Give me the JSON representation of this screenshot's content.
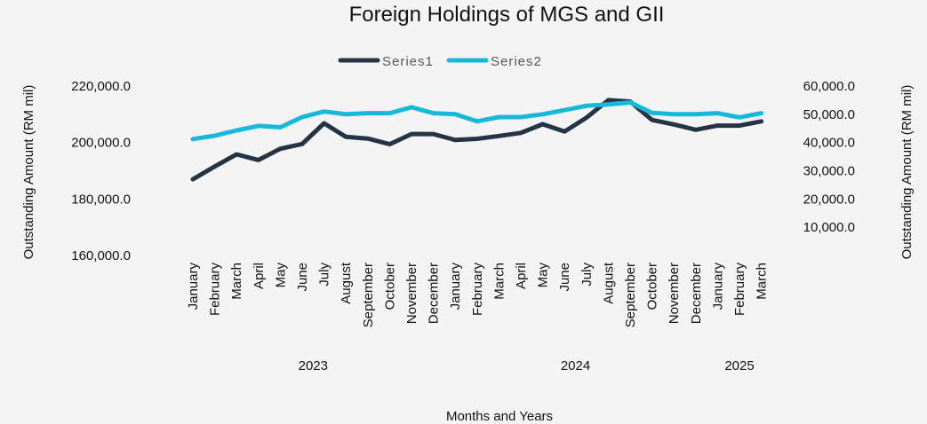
{
  "chart_data": {
    "type": "line",
    "title": "Foreign Holdings of MGS and GII",
    "xlabel": "Months and Years",
    "ylabel_left": "Outstanding Amount (RM mil)",
    "ylabel_right": "Outstanding Amount (RM mil)",
    "legend": [
      "Series1",
      "Series2"
    ],
    "legend_position": "top-center",
    "categories": [
      "January",
      "February",
      "March",
      "April",
      "May",
      "June",
      "July",
      "August",
      "September",
      "October",
      "November",
      "December",
      "January",
      "February",
      "March",
      "April",
      "May",
      "June",
      "July",
      "August",
      "September",
      "October",
      "November",
      "December",
      "January",
      "February",
      "March"
    ],
    "years": [
      {
        "label": "2023",
        "start": 0,
        "end": 11
      },
      {
        "label": "2024",
        "start": 12,
        "end": 23
      },
      {
        "label": "2025",
        "start": 24,
        "end": 26
      }
    ],
    "y_left": {
      "min": 160000,
      "max": 220000,
      "ticks": [
        160000,
        180000,
        200000,
        220000
      ],
      "tick_labels": [
        "160,000.0",
        "180,000.0",
        "200,000.0",
        "220,000.0"
      ]
    },
    "y_right": {
      "min": 0,
      "max": 60000,
      "ticks": [
        10000,
        20000,
        30000,
        40000,
        50000,
        60000
      ],
      "tick_labels": [
        "10,000.0",
        "20,000.0",
        "30,000.0",
        "40,000.0",
        "50,000.0",
        "60,000.0"
      ]
    },
    "series": [
      {
        "name": "Series1",
        "axis": "left",
        "color": "#243444",
        "values": [
          187000,
          191500,
          195800,
          193800,
          197800,
          199500,
          206800,
          202000,
          201400,
          199400,
          203000,
          203000,
          200900,
          201300,
          202300,
          203400,
          206500,
          203900,
          208800,
          215000,
          214500,
          208000,
          206400,
          204500,
          206000,
          206000,
          207500
        ]
      },
      {
        "name": "Series2",
        "axis": "right",
        "color": "#19b8d8",
        "values": [
          41200,
          42400,
          44300,
          45900,
          45400,
          49000,
          51000,
          50000,
          50400,
          50400,
          52500,
          50400,
          50000,
          47500,
          49000,
          49000,
          50000,
          51500,
          53000,
          53500,
          54200,
          50500,
          50000,
          50000,
          50400,
          48900,
          50400
        ]
      }
    ]
  }
}
